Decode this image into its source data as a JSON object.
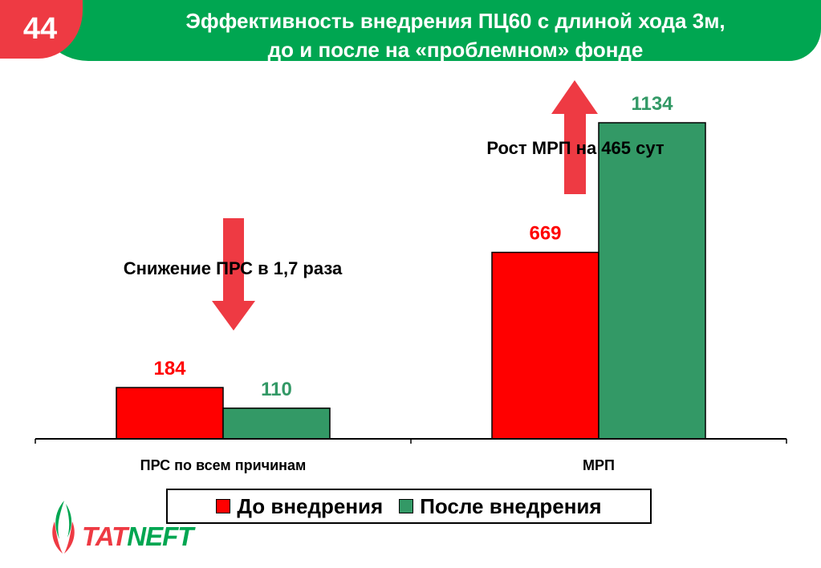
{
  "slide": {
    "number": "44",
    "title_line1": "Эффективность внедрения ПЦ60 с длиной хода 3м,",
    "title_line2": "до и после на «проблемном» фонде"
  },
  "chart_data": {
    "type": "bar",
    "categories": [
      "ПРС по всем причинам",
      "МРП"
    ],
    "series": [
      {
        "name": "До внедрения",
        "values": [
          184,
          669
        ],
        "color": "#ff0000"
      },
      {
        "name": "После внедрения",
        "values": [
          110,
          1134
        ],
        "color": "#339966"
      }
    ],
    "data_labels": [
      [
        "184",
        "669"
      ],
      [
        "110",
        "1134"
      ]
    ],
    "ylim": [
      0,
      1200
    ],
    "grid": false,
    "legend_position": "bottom",
    "annotations": [
      {
        "text": "Снижение ПРС в 1,7 раза",
        "arrow": "down"
      },
      {
        "text": "Рост МРП на 465 сут",
        "arrow": "up"
      }
    ],
    "arrow_color": "#ee3a43"
  },
  "logo": {
    "text_part1": "TAT",
    "text_part2": "NEFT"
  }
}
